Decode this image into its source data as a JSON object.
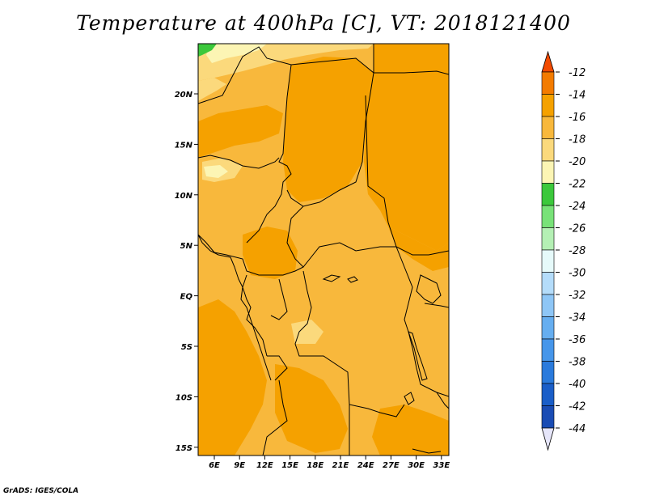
{
  "title": "Temperature at 400hPa [C], VT: 2018121400",
  "footer": "GrADS: IGES/COLA",
  "map": {
    "lon_ticks": [
      "6E",
      "9E",
      "12E",
      "15E",
      "18E",
      "21E",
      "24E",
      "27E",
      "30E",
      "33E"
    ],
    "lat_ticks": [
      "20N",
      "15N",
      "10N",
      "5N",
      "EQ",
      "5S",
      "10S",
      "15S"
    ],
    "colors": {
      "t_16_14": "#f5a100",
      "t_18_16": "#f8b83c",
      "t_20_18": "#fbd97c",
      "t_22_20": "#fcf5b4",
      "t_24_22": "#3cc83c",
      "border": "#000000"
    }
  },
  "colorbar": {
    "labels": [
      "-12",
      "-14",
      "-16",
      "-18",
      "-20",
      "-22",
      "-24",
      "-26",
      "-28",
      "-30",
      "-32",
      "-34",
      "-36",
      "-38",
      "-40",
      "-42",
      "-44"
    ],
    "colors": [
      "#f24a00",
      "#f37b00",
      "#f5a100",
      "#f8b83c",
      "#fbd97c",
      "#fcf5b4",
      "#3cc83c",
      "#78e278",
      "#b4f0b4",
      "#e6fafa",
      "#b4dcfa",
      "#8ec6f6",
      "#66aef0",
      "#4696ea",
      "#2a7adc",
      "#1a5ec8",
      "#1a4cb4",
      "#0e1478"
    ],
    "over_color": "#f24a00",
    "under_color": "#e6e6fa"
  }
}
